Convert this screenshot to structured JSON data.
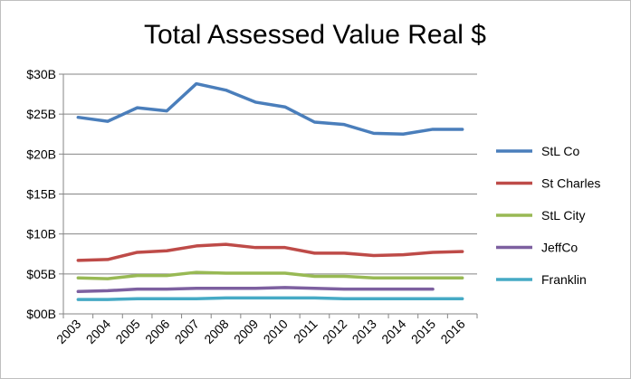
{
  "chart_data": {
    "type": "line",
    "title": "Total Assessed Value Real $",
    "xlabel": "",
    "ylabel": "",
    "categories": [
      "2003",
      "2004",
      "2005",
      "2006",
      "2007",
      "2008",
      "2009",
      "2010",
      "2011",
      "2012",
      "2013",
      "2014",
      "2015",
      "2016"
    ],
    "y_tick_labels": [
      "$00B",
      "$05B",
      "$10B",
      "$15B",
      "$20B",
      "$25B",
      "$30B"
    ],
    "y_ticks": [
      0,
      5,
      10,
      15,
      20,
      25,
      30
    ],
    "ylim": [
      0,
      30
    ],
    "grid": true,
    "legend_position": "right",
    "series": [
      {
        "name": "StL Co",
        "color": "#4a7ebb",
        "values": [
          24.6,
          24.1,
          25.8,
          25.4,
          28.8,
          28.0,
          26.5,
          25.9,
          24.0,
          23.7,
          22.6,
          22.5,
          23.1,
          23.1
        ]
      },
      {
        "name": "St Charles",
        "color": "#be4b48",
        "values": [
          6.7,
          6.8,
          7.7,
          7.9,
          8.5,
          8.7,
          8.3,
          8.3,
          7.6,
          7.6,
          7.3,
          7.4,
          7.7,
          7.8
        ]
      },
      {
        "name": "StL City",
        "color": "#98b954",
        "values": [
          4.5,
          4.4,
          4.8,
          4.8,
          5.2,
          5.1,
          5.1,
          5.1,
          4.7,
          4.7,
          4.5,
          4.5,
          4.5,
          4.5
        ]
      },
      {
        "name": "JeffCo",
        "color": "#7d60a0",
        "values": [
          2.8,
          2.9,
          3.1,
          3.1,
          3.2,
          3.2,
          3.2,
          3.3,
          3.2,
          3.1,
          3.1,
          3.1,
          3.1,
          null
        ]
      },
      {
        "name": "Franklin",
        "color": "#46aac5",
        "values": [
          1.8,
          1.8,
          1.9,
          1.9,
          1.9,
          2.0,
          2.0,
          2.0,
          2.0,
          1.9,
          1.9,
          1.9,
          1.9,
          1.9
        ]
      }
    ]
  }
}
